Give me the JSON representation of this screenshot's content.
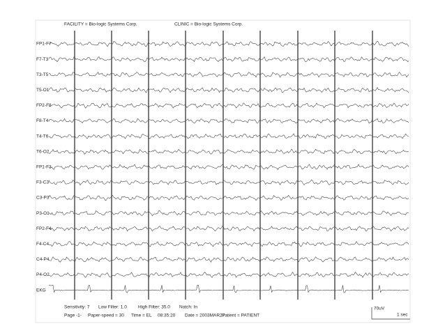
{
  "header": {
    "facility": "FACILITY = Bio-logic Systems Corp.",
    "clinic": "CLINIC = Bio-logic Systems Corp."
  },
  "channels": [
    "FP1-F7",
    "F7-T3",
    "T3-T5",
    "T5-O1",
    "FP2-F8",
    "F8-T4",
    "T4-T6",
    "T6-O2",
    "FP1-F3",
    "F3-C3",
    "C3-P3",
    "P3-O1",
    "FP2-F4",
    "F4-C4",
    "C4-P4",
    "P4-O2",
    "EKG"
  ],
  "footer": {
    "line1": [
      "Sensitivity: 7",
      "Low Filter: 1.0",
      "High Filter: 35.0",
      "Notch: In"
    ],
    "line2": [
      "Page -1-",
      "Paper-speed = 30",
      "Time = EL",
      "08:35:20",
      "Date = 2003MAR27",
      "Patient = PATIENT"
    ]
  },
  "calibration": {
    "amplitude": "70uV",
    "time": "1 sec"
  }
}
